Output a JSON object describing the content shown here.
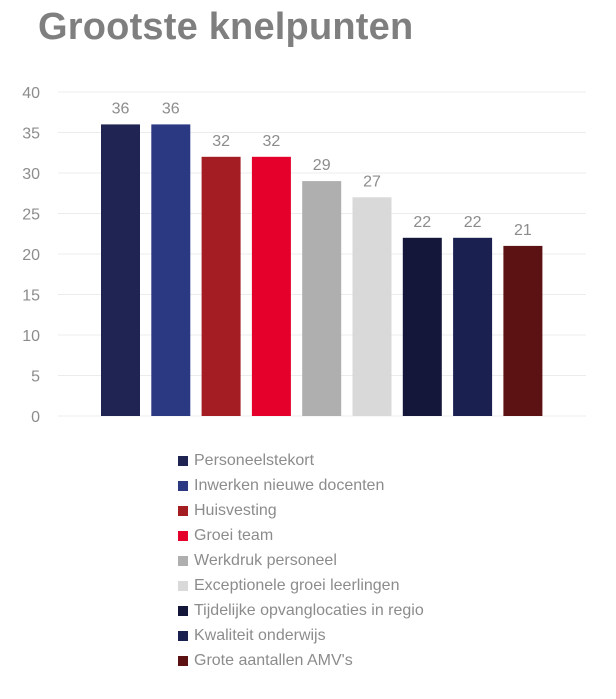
{
  "chart_data": {
    "type": "bar",
    "title": "Grootste knelpunten",
    "xlabel": "",
    "ylabel": "",
    "ylim": [
      0,
      40
    ],
    "yticks": [
      0,
      5,
      10,
      15,
      20,
      25,
      30,
      35,
      40
    ],
    "grid": true,
    "legend_position": "bottom",
    "series": [
      {
        "name": "Personeelstekort",
        "value": 36,
        "color": "#1f2452"
      },
      {
        "name": "Inwerken nieuwe docenten",
        "value": 36,
        "color": "#2b3982"
      },
      {
        "name": "Huisvesting",
        "value": 32,
        "color": "#a31d22"
      },
      {
        "name": "Groei team",
        "value": 32,
        "color": "#e4002b"
      },
      {
        "name": "Werkdruk personeel",
        "value": 29,
        "color": "#afafaf"
      },
      {
        "name": "Exceptionele groei leerlingen",
        "value": 27,
        "color": "#d9d9d9"
      },
      {
        "name": "Tijdelijke opvanglocaties in regio",
        "value": 22,
        "color": "#14163a"
      },
      {
        "name": "Kwaliteit onderwijs",
        "value": 22,
        "color": "#1a2150"
      },
      {
        "name": "Grote aantallen AMV's",
        "value": 21,
        "color": "#5c1212"
      }
    ]
  }
}
